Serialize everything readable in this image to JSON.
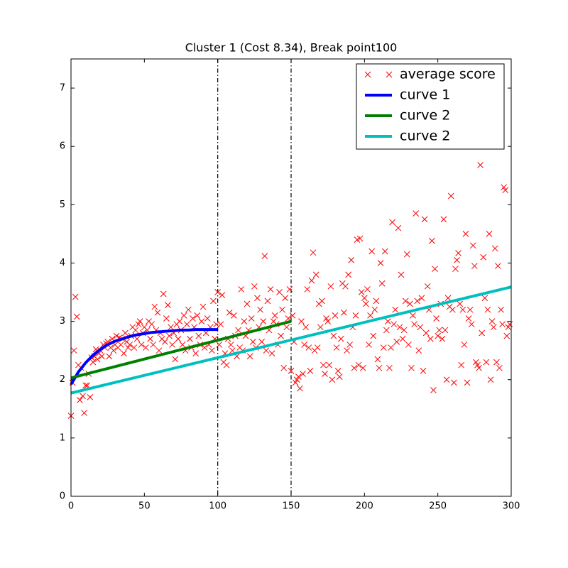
{
  "chart_data": {
    "type": "line",
    "title": "Cluster 1 (Cost 8.34), Break point100",
    "xlim": [
      0,
      300
    ],
    "ylim": [
      0,
      7.5
    ],
    "xticks": [
      0,
      50,
      100,
      150,
      200,
      250,
      300
    ],
    "yticks": [
      0,
      1,
      2,
      3,
      4,
      5,
      6,
      7
    ],
    "vlines": [
      100,
      150
    ],
    "vline_color": "#000000",
    "legend": "upper right",
    "series": [
      {
        "name": "average score",
        "type": "scatter",
        "color": "#ff0000",
        "x": [
          0,
          1,
          2,
          3,
          4,
          5,
          6,
          7,
          8,
          9,
          10,
          11,
          12,
          13,
          14,
          15,
          16,
          17,
          18,
          19,
          20,
          21,
          22,
          23,
          24,
          25,
          26,
          27,
          28,
          29,
          30,
          31,
          32,
          33,
          34,
          35,
          36,
          37,
          38,
          39,
          40,
          41,
          42,
          43,
          44,
          45,
          46,
          47,
          48,
          49,
          50,
          51,
          52,
          53,
          54,
          55,
          56,
          57,
          58,
          59,
          60,
          61,
          62,
          63,
          64,
          65,
          66,
          67,
          68,
          69,
          70,
          71,
          72,
          73,
          74,
          75,
          76,
          77,
          78,
          79,
          80,
          81,
          82,
          83,
          84,
          85,
          86,
          87,
          88,
          89,
          90,
          91,
          92,
          93,
          94,
          95,
          96,
          97,
          98,
          99,
          100,
          101,
          102,
          103,
          104,
          105,
          106,
          107,
          108,
          109,
          110,
          111,
          112,
          113,
          114,
          115,
          116,
          117,
          118,
          119,
          120,
          121,
          122,
          123,
          124,
          125,
          126,
          127,
          128,
          129,
          130,
          131,
          132,
          133,
          134,
          135,
          136,
          137,
          138,
          139,
          140,
          141,
          142,
          143,
          144,
          145,
          146,
          147,
          148,
          149,
          150,
          151,
          152,
          153,
          154,
          155,
          156,
          157,
          158,
          159,
          160,
          161,
          162,
          163,
          164,
          165,
          166,
          167,
          168,
          169,
          170,
          171,
          172,
          173,
          174,
          175,
          176,
          177,
          178,
          179,
          180,
          181,
          182,
          183,
          184,
          185,
          186,
          187,
          188,
          189,
          190,
          191,
          192,
          193,
          194,
          195,
          196,
          197,
          198,
          199,
          200,
          201,
          202,
          203,
          204,
          205,
          206,
          207,
          208,
          209,
          210,
          211,
          212,
          213,
          214,
          215,
          216,
          217,
          218,
          219,
          220,
          221,
          222,
          223,
          224,
          225,
          226,
          227,
          228,
          229,
          230,
          231,
          232,
          233,
          234,
          235,
          236,
          237,
          238,
          239,
          240,
          241,
          242,
          243,
          244,
          245,
          246,
          247,
          248,
          249,
          250,
          251,
          252,
          253,
          254,
          255,
          256,
          257,
          258,
          259,
          260,
          261,
          262,
          263,
          264,
          265,
          266,
          267,
          268,
          269,
          270,
          271,
          272,
          273,
          274,
          275,
          276,
          277,
          278,
          279,
          280,
          281,
          282,
          283,
          284,
          285,
          286,
          287,
          288,
          289,
          290,
          291,
          292,
          293,
          294,
          295,
          296,
          297,
          298,
          299
        ],
        "values": [
          1.38,
          1.95,
          2.5,
          3.42,
          3.08,
          2.25,
          1.65,
          2.2,
          1.72,
          1.43,
          1.9,
          1.9,
          2.1,
          1.7,
          2.38,
          2.3,
          2.4,
          2.52,
          2.35,
          2.45,
          2.5,
          2.4,
          2.6,
          2.55,
          2.62,
          2.65,
          2.4,
          2.55,
          2.7,
          2.5,
          2.6,
          2.75,
          2.55,
          2.72,
          2.6,
          2.7,
          2.45,
          2.8,
          2.65,
          2.55,
          2.6,
          2.75,
          2.9,
          2.55,
          2.85,
          2.7,
          2.95,
          3.0,
          2.6,
          2.8,
          2.9,
          2.55,
          2.85,
          3.0,
          2.7,
          2.95,
          2.6,
          3.25,
          2.85,
          3.15,
          2.5,
          2.8,
          2.7,
          3.47,
          2.65,
          3.05,
          3.28,
          2.75,
          2.9,
          2.6,
          2.8,
          2.35,
          2.95,
          2.7,
          3.0,
          2.85,
          2.6,
          3.1,
          2.5,
          2.95,
          3.2,
          2.7,
          2.55,
          3.05,
          2.9,
          2.45,
          3.1,
          2.75,
          2.6,
          3.0,
          3.25,
          2.55,
          2.8,
          3.05,
          2.6,
          2.9,
          2.5,
          3.35,
          2.7,
          2.95,
          3.5,
          2.6,
          2.95,
          3.45,
          2.3,
          2.45,
          2.25,
          2.7,
          3.15,
          2.6,
          2.5,
          3.1,
          2.75,
          2.4,
          2.85,
          2.55,
          3.55,
          2.5,
          3.0,
          2.75,
          3.3,
          2.85,
          2.4,
          3.05,
          2.65,
          3.6,
          2.55,
          3.4,
          2.9,
          3.2,
          2.65,
          3.0,
          4.12,
          2.5,
          3.35,
          2.85,
          3.55,
          2.45,
          3.0,
          3.1,
          2.95,
          2.6,
          3.5,
          2.75,
          3.2,
          2.2,
          3.4,
          2.9,
          3.05,
          3.55,
          2.15,
          3.1,
          2.65,
          1.95,
          2.0,
          2.05,
          1.85,
          3.0,
          2.1,
          2.6,
          2.9,
          3.55,
          2.55,
          2.15,
          3.7,
          4.18,
          2.5,
          3.8,
          2.55,
          3.3,
          2.9,
          3.35,
          2.25,
          2.1,
          3.05,
          3.0,
          2.25,
          3.6,
          2.0,
          2.75,
          3.1,
          2.55,
          2.15,
          2.05,
          2.7,
          3.65,
          3.15,
          3.6,
          2.5,
          3.8,
          2.6,
          4.05,
          2.9,
          2.2,
          3.1,
          4.4,
          2.25,
          4.42,
          3.5,
          2.2,
          3.4,
          3.3,
          3.55,
          2.6,
          3.1,
          4.2,
          2.75,
          3.2,
          3.35,
          2.35,
          2.2,
          4.0,
          3.65,
          2.55,
          4.2,
          2.85,
          3.0,
          2.2,
          2.55,
          4.7,
          2.95,
          3.2,
          2.65,
          4.6,
          2.9,
          3.8,
          2.7,
          2.85,
          3.35,
          4.15,
          2.6,
          3.3,
          2.2,
          3.1,
          2.95,
          4.85,
          3.35,
          2.5,
          2.9,
          3.4,
          2.15,
          4.75,
          2.8,
          3.6,
          3.2,
          2.7,
          4.38,
          1.82,
          3.9,
          3.05,
          2.75,
          2.85,
          3.3,
          2.7,
          4.75,
          2.85,
          2.0,
          3.4,
          3.25,
          5.15,
          3.2,
          1.95,
          3.9,
          4.05,
          4.17,
          3.3,
          2.25,
          3.2,
          2.6,
          4.5,
          1.95,
          3.05,
          3.2,
          2.95,
          4.3,
          3.95,
          2.3,
          2.25,
          2.2,
          5.68,
          2.8,
          4.1,
          3.4,
          2.3,
          3.2,
          4.5,
          2.0,
          3.0,
          2.9,
          4.25,
          2.3,
          3.95,
          2.2,
          3.2,
          2.95,
          5.3,
          5.25,
          2.75,
          2.9,
          2.95
        ]
      },
      {
        "name": "curve 1",
        "type": "line",
        "color": "#0000ff",
        "x": [
          0,
          5,
          10,
          15,
          20,
          25,
          30,
          35,
          40,
          45,
          50,
          55,
          60,
          65,
          70,
          75,
          80,
          85,
          90,
          95,
          100
        ],
        "values": [
          1.92,
          2.13,
          2.29,
          2.42,
          2.52,
          2.6,
          2.66,
          2.7,
          2.74,
          2.77,
          2.79,
          2.81,
          2.82,
          2.83,
          2.84,
          2.85,
          2.85,
          2.86,
          2.86,
          2.86,
          2.86
        ]
      },
      {
        "name": "curve 2",
        "type": "line",
        "color": "#008000",
        "x": [
          0,
          150
        ],
        "values": [
          2.03,
          3.0
        ]
      },
      {
        "name": "curve 2",
        "type": "line",
        "color": "#00bfbf",
        "x": [
          0,
          300
        ],
        "values": [
          1.77,
          3.59
        ]
      }
    ]
  }
}
